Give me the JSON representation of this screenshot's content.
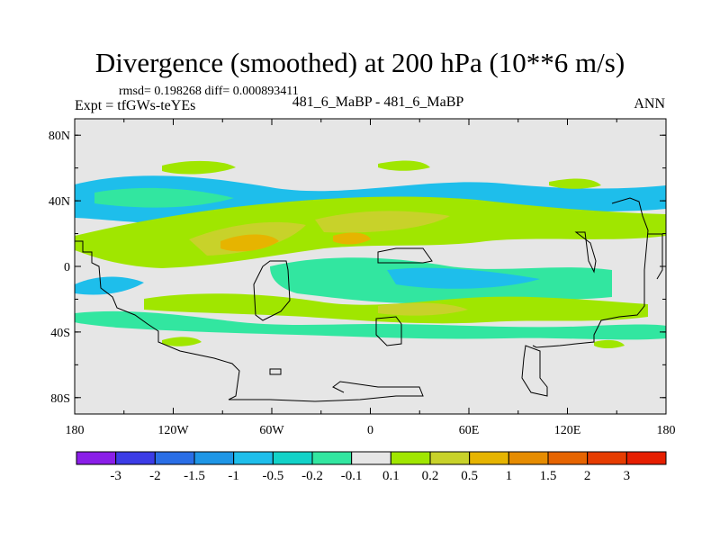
{
  "title": "Divergence (smoothed) at 200 hPa (10**6 m/s)",
  "stats": "rmsd= 0.198268 diff= 0.000893411",
  "experiment": "Expt = tfGWs-teYEs",
  "case_label": "481_6_MaBP - 481_6_MaBP",
  "season": "ANN",
  "chart_data": {
    "type": "contour-map",
    "title": "Divergence (smoothed) at 200 hPa (10**6 m/s)",
    "x_ticks": [
      "180",
      "120W",
      "60W",
      "0",
      "60E",
      "120E",
      "180"
    ],
    "y_ticks": [
      "80N",
      "40N",
      "0",
      "40S",
      "80S"
    ],
    "lon_range": [
      -180,
      180
    ],
    "lat_range": [
      -90,
      90
    ],
    "colorbar_labels": [
      "-3",
      "-2",
      "-1.5",
      "-1",
      "-0.5",
      "-0.2",
      "-0.1",
      "0.1",
      "0.2",
      "0.5",
      "1",
      "1.5",
      "2",
      "3"
    ],
    "colorbar_colors": [
      "#8a1ee8",
      "#3c3ce6",
      "#2a6ee6",
      "#1e96e6",
      "#1ebeeb",
      "#12d2c8",
      "#32e6a0",
      "#e6e6e6",
      "#a0e600",
      "#c8d22a",
      "#e6b400",
      "#e68c00",
      "#e66400",
      "#e63c00",
      "#e61e00"
    ]
  }
}
